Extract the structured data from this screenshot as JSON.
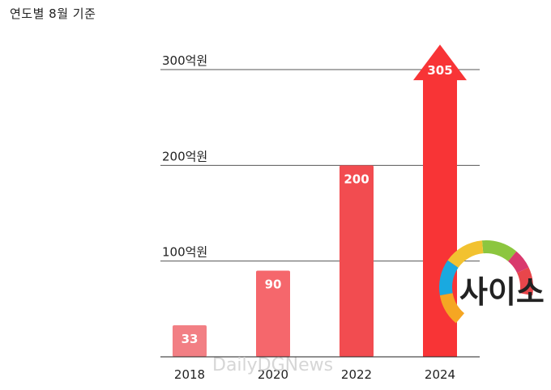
{
  "chart_data": {
    "type": "bar",
    "subtitle": "연도별 8월 기준",
    "categories": [
      "2018",
      "2020",
      "2022",
      "2024"
    ],
    "values": [
      33,
      90,
      200,
      305
    ],
    "value_labels": [
      "33",
      "90",
      "200",
      "305"
    ],
    "y_ticks": [
      {
        "value": 100,
        "label": "100억원"
      },
      {
        "value": 200,
        "label": "200억원"
      },
      {
        "value": 300,
        "label": "300억원"
      }
    ],
    "ylim": [
      0,
      320
    ],
    "grid": true,
    "colors": [
      "#f27f84",
      "#f5676c",
      "#f24c50",
      "#f83436"
    ],
    "last_bar_style": "arrow"
  },
  "watermark": "DailyDGNews",
  "logo": {
    "text": "사이소",
    "ring_colors": [
      "#e8464b",
      "#d9396d",
      "#f2c230",
      "#8cc63f",
      "#19a9e0",
      "#f5a623"
    ]
  }
}
